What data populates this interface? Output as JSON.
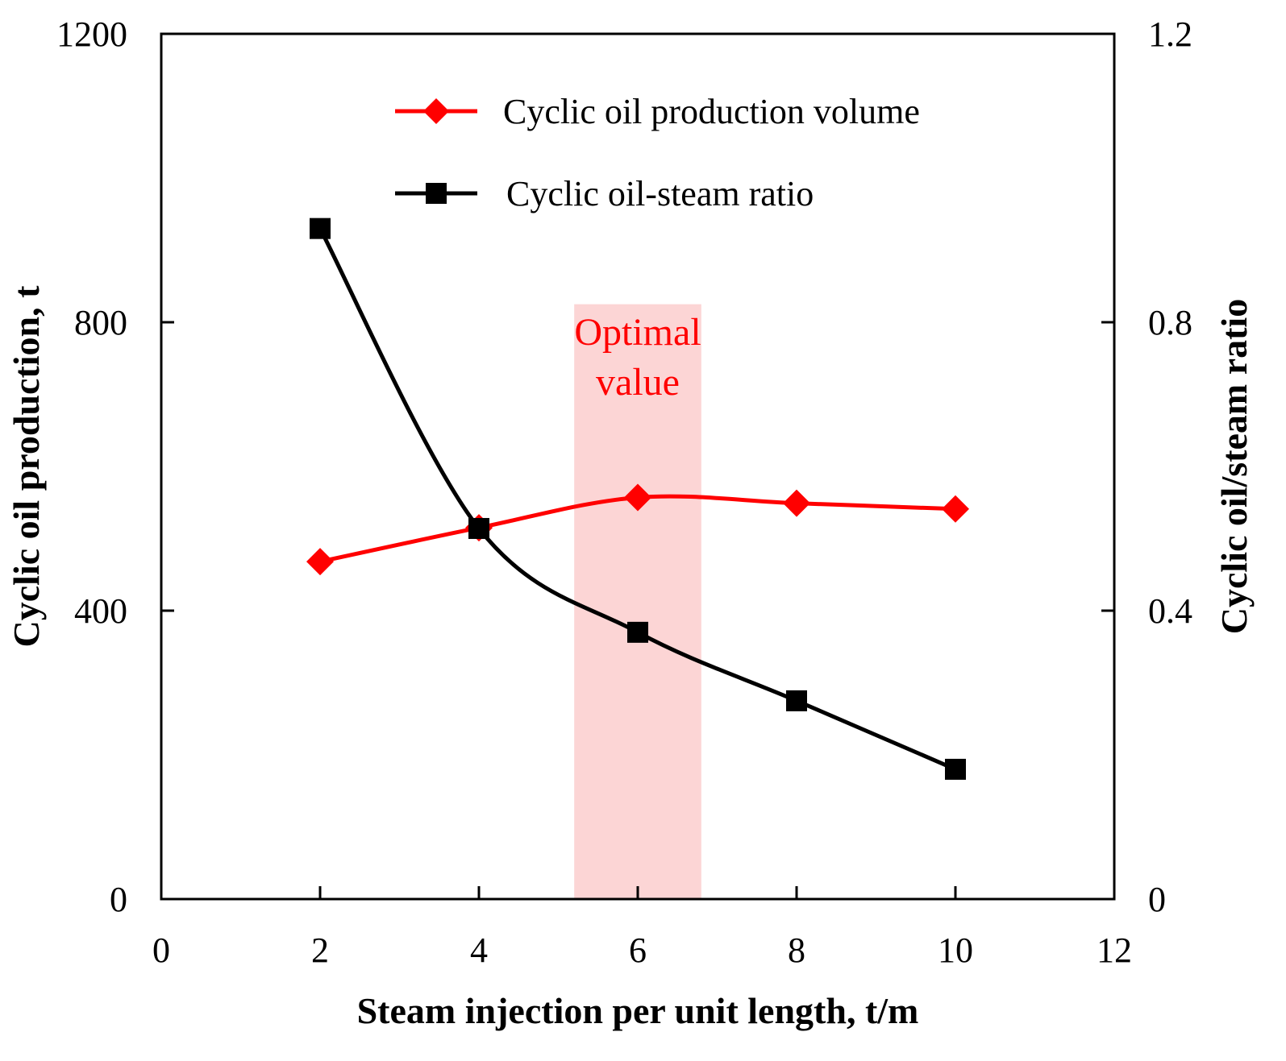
{
  "chart_data": {
    "type": "line",
    "x": [
      2,
      4,
      6,
      8,
      10
    ],
    "xlabel": "Steam injection per unit length, t/m",
    "ylabel_left": "Cyclic oil production, t",
    "ylabel_right": "Cyclic oil/steam ratio",
    "xlim": [
      0,
      12
    ],
    "ylim_left": [
      0,
      1200
    ],
    "ylim_right": [
      0,
      1.2
    ],
    "xticks": [
      "0",
      "2",
      "4",
      "6",
      "8",
      "10",
      "12"
    ],
    "yticks_left": [
      "0",
      "400",
      "800",
      "1200"
    ],
    "yticks_right": [
      "0",
      "0.4",
      "0.8",
      "1.2"
    ],
    "series": [
      {
        "name": "Cyclic oil production volume",
        "axis": "left",
        "color": "#ff0000",
        "marker": "diamond",
        "values": [
          468,
          515,
          557,
          549,
          541
        ]
      },
      {
        "name": "Cyclic oil-steam ratio",
        "axis": "right",
        "color": "#000000",
        "marker": "square",
        "values": [
          0.93,
          0.514,
          0.37,
          0.275,
          0.18
        ]
      }
    ],
    "highlight": {
      "label_line1": "Optimal",
      "label_line2": "value",
      "x_range": [
        5.2,
        6.8
      ],
      "y_range_left": [
        0,
        825
      ],
      "color": "#fcd5d5"
    },
    "legend_position": "top-center",
    "grid": false
  }
}
